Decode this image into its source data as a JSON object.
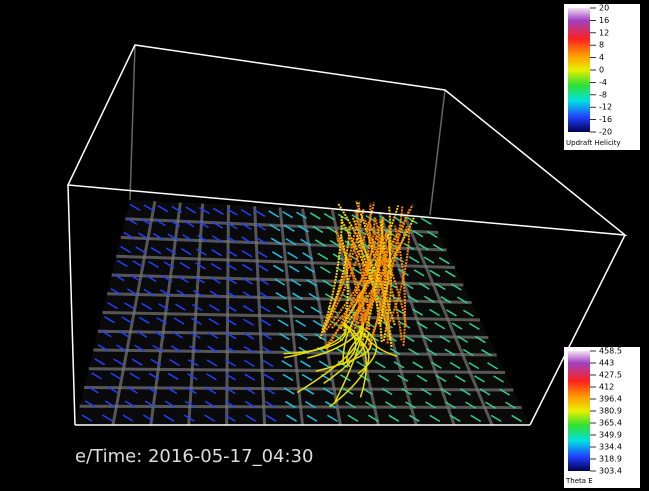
{
  "colorbars": [
    {
      "title": "Updraft Helicity",
      "ticks": [
        20,
        16,
        12,
        8,
        4,
        0,
        -4,
        -8,
        -12,
        -16,
        -20
      ]
    },
    {
      "title": "Theta E",
      "ticks": [
        458.5,
        443,
        427.5,
        412,
        396.4,
        380.9,
        365.4,
        349.9,
        334.4,
        318.9,
        303.4
      ]
    }
  ],
  "time_label": "e/Time: 2016-05-17_04:30"
}
